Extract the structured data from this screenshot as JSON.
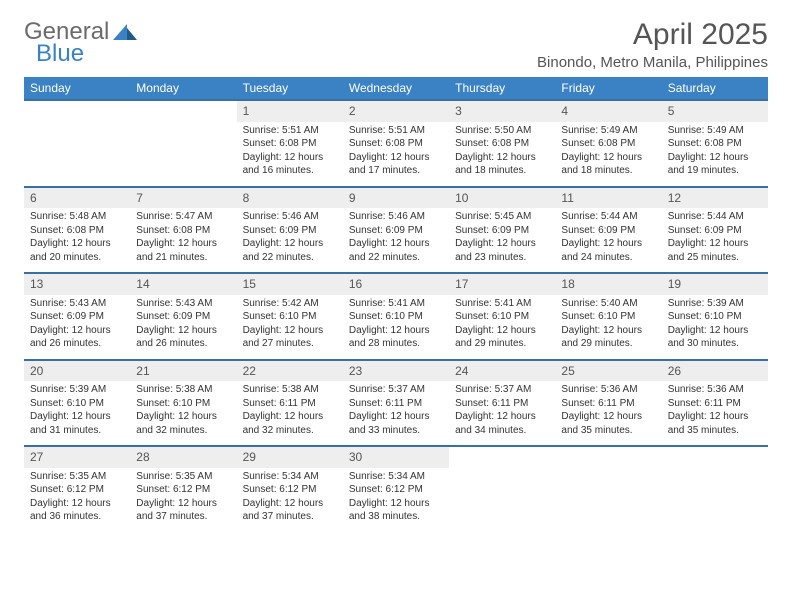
{
  "logo": {
    "word1": "General",
    "word2": "Blue"
  },
  "title": "April 2025",
  "location": "Binondo, Metro Manila, Philippines",
  "colors": {
    "header_bg": "#3b82c4",
    "header_text": "#ffffff",
    "daynum_bg": "#eeeeee",
    "row_border": "#3b6ea3",
    "body_text": "#333333",
    "title_text": "#555555",
    "logo_gray": "#6b6b6b",
    "logo_blue": "#3b82c4"
  },
  "columns": [
    "Sunday",
    "Monday",
    "Tuesday",
    "Wednesday",
    "Thursday",
    "Friday",
    "Saturday"
  ],
  "weeks": [
    [
      null,
      null,
      {
        "day": "1",
        "sunrise": "5:51 AM",
        "sunset": "6:08 PM",
        "daylight": "Daylight: 12 hours and 16 minutes."
      },
      {
        "day": "2",
        "sunrise": "5:51 AM",
        "sunset": "6:08 PM",
        "daylight": "Daylight: 12 hours and 17 minutes."
      },
      {
        "day": "3",
        "sunrise": "5:50 AM",
        "sunset": "6:08 PM",
        "daylight": "Daylight: 12 hours and 18 minutes."
      },
      {
        "day": "4",
        "sunrise": "5:49 AM",
        "sunset": "6:08 PM",
        "daylight": "Daylight: 12 hours and 18 minutes."
      },
      {
        "day": "5",
        "sunrise": "5:49 AM",
        "sunset": "6:08 PM",
        "daylight": "Daylight: 12 hours and 19 minutes."
      }
    ],
    [
      {
        "day": "6",
        "sunrise": "5:48 AM",
        "sunset": "6:08 PM",
        "daylight": "Daylight: 12 hours and 20 minutes."
      },
      {
        "day": "7",
        "sunrise": "5:47 AM",
        "sunset": "6:08 PM",
        "daylight": "Daylight: 12 hours and 21 minutes."
      },
      {
        "day": "8",
        "sunrise": "5:46 AM",
        "sunset": "6:09 PM",
        "daylight": "Daylight: 12 hours and 22 minutes."
      },
      {
        "day": "9",
        "sunrise": "5:46 AM",
        "sunset": "6:09 PM",
        "daylight": "Daylight: 12 hours and 22 minutes."
      },
      {
        "day": "10",
        "sunrise": "5:45 AM",
        "sunset": "6:09 PM",
        "daylight": "Daylight: 12 hours and 23 minutes."
      },
      {
        "day": "11",
        "sunrise": "5:44 AM",
        "sunset": "6:09 PM",
        "daylight": "Daylight: 12 hours and 24 minutes."
      },
      {
        "day": "12",
        "sunrise": "5:44 AM",
        "sunset": "6:09 PM",
        "daylight": "Daylight: 12 hours and 25 minutes."
      }
    ],
    [
      {
        "day": "13",
        "sunrise": "5:43 AM",
        "sunset": "6:09 PM",
        "daylight": "Daylight: 12 hours and 26 minutes."
      },
      {
        "day": "14",
        "sunrise": "5:43 AM",
        "sunset": "6:09 PM",
        "daylight": "Daylight: 12 hours and 26 minutes."
      },
      {
        "day": "15",
        "sunrise": "5:42 AM",
        "sunset": "6:10 PM",
        "daylight": "Daylight: 12 hours and 27 minutes."
      },
      {
        "day": "16",
        "sunrise": "5:41 AM",
        "sunset": "6:10 PM",
        "daylight": "Daylight: 12 hours and 28 minutes."
      },
      {
        "day": "17",
        "sunrise": "5:41 AM",
        "sunset": "6:10 PM",
        "daylight": "Daylight: 12 hours and 29 minutes."
      },
      {
        "day": "18",
        "sunrise": "5:40 AM",
        "sunset": "6:10 PM",
        "daylight": "Daylight: 12 hours and 29 minutes."
      },
      {
        "day": "19",
        "sunrise": "5:39 AM",
        "sunset": "6:10 PM",
        "daylight": "Daylight: 12 hours and 30 minutes."
      }
    ],
    [
      {
        "day": "20",
        "sunrise": "5:39 AM",
        "sunset": "6:10 PM",
        "daylight": "Daylight: 12 hours and 31 minutes."
      },
      {
        "day": "21",
        "sunrise": "5:38 AM",
        "sunset": "6:10 PM",
        "daylight": "Daylight: 12 hours and 32 minutes."
      },
      {
        "day": "22",
        "sunrise": "5:38 AM",
        "sunset": "6:11 PM",
        "daylight": "Daylight: 12 hours and 32 minutes."
      },
      {
        "day": "23",
        "sunrise": "5:37 AM",
        "sunset": "6:11 PM",
        "daylight": "Daylight: 12 hours and 33 minutes."
      },
      {
        "day": "24",
        "sunrise": "5:37 AM",
        "sunset": "6:11 PM",
        "daylight": "Daylight: 12 hours and 34 minutes."
      },
      {
        "day": "25",
        "sunrise": "5:36 AM",
        "sunset": "6:11 PM",
        "daylight": "Daylight: 12 hours and 35 minutes."
      },
      {
        "day": "26",
        "sunrise": "5:36 AM",
        "sunset": "6:11 PM",
        "daylight": "Daylight: 12 hours and 35 minutes."
      }
    ],
    [
      {
        "day": "27",
        "sunrise": "5:35 AM",
        "sunset": "6:12 PM",
        "daylight": "Daylight: 12 hours and 36 minutes."
      },
      {
        "day": "28",
        "sunrise": "5:35 AM",
        "sunset": "6:12 PM",
        "daylight": "Daylight: 12 hours and 37 minutes."
      },
      {
        "day": "29",
        "sunrise": "5:34 AM",
        "sunset": "6:12 PM",
        "daylight": "Daylight: 12 hours and 37 minutes."
      },
      {
        "day": "30",
        "sunrise": "5:34 AM",
        "sunset": "6:12 PM",
        "daylight": "Daylight: 12 hours and 38 minutes."
      },
      null,
      null,
      null
    ]
  ],
  "labels": {
    "sunrise": "Sunrise: ",
    "sunset": "Sunset: "
  }
}
